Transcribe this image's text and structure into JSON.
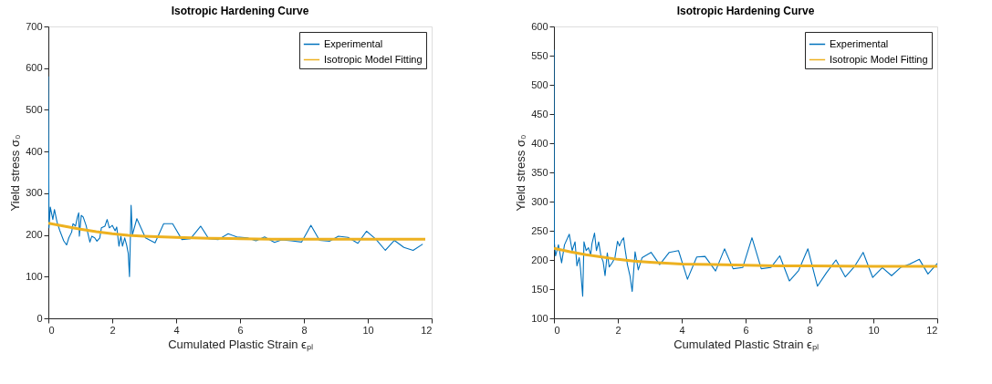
{
  "chart_data": [
    {
      "type": "line",
      "title": "Isotropic Hardening Curve",
      "xlabel": "Cumulated Plastic Strain ϵₚₗ",
      "ylabel": "Yield stress σ₀",
      "xlim": [
        0,
        12
      ],
      "xticks": [
        0,
        2,
        4,
        6,
        8,
        10,
        12
      ],
      "ylim": [
        0,
        700
      ],
      "yticks": [
        0,
        100,
        200,
        300,
        400,
        500,
        600,
        700
      ],
      "grid": false,
      "legend": "top right",
      "series": [
        {
          "name": "Experimental",
          "color": "#0072bd",
          "x": [
            0,
            0.02,
            0.06,
            0.14,
            0.19,
            0.27,
            0.36,
            0.48,
            0.57,
            0.64,
            0.73,
            0.77,
            0.85,
            0.91,
            0.95,
            0.97,
            1.03,
            1.09,
            1.18,
            1.3,
            1.36,
            1.45,
            1.52,
            1.61,
            1.66,
            1.77,
            1.84,
            1.91,
            2.0,
            2.09,
            2.14,
            2.21,
            2.27,
            2.32,
            2.39,
            2.45,
            2.5,
            2.54,
            2.59,
            2.63,
            2.77,
            3.04,
            3.34,
            3.61,
            3.89,
            4.18,
            4.45,
            4.77,
            5.02,
            5.32,
            5.63,
            5.9,
            6.23,
            6.5,
            6.77,
            7.08,
            7.3,
            7.6,
            7.93,
            8.22,
            8.49,
            8.8,
            9.08,
            9.38,
            9.69,
            9.96,
            10.25,
            10.55,
            10.83,
            11.13,
            11.42,
            11.72
          ],
          "values": [
            580,
            217,
            267,
            237,
            261,
            231,
            210,
            186,
            176,
            193,
            207,
            227,
            221,
            243,
            253,
            197,
            247,
            243,
            223,
            183,
            197,
            193,
            185,
            193,
            217,
            221,
            237,
            217,
            223,
            210,
            219,
            173,
            197,
            173,
            193,
            176,
            156,
            100,
            271,
            200,
            239,
            193,
            181,
            227,
            227,
            189,
            191,
            221,
            191,
            189,
            203,
            195,
            193,
            186,
            195,
            182,
            188,
            186,
            183,
            223,
            187,
            185,
            197,
            194,
            180,
            209,
            190,
            163,
            187,
            170,
            163,
            178
          ]
        },
        {
          "name": "Isotropic Model Fitting",
          "color": "#edb120",
          "x": [
            0,
            0.5,
            1,
            1.5,
            2,
            2.5,
            3,
            4,
            5,
            6,
            7,
            8,
            10,
            11.8
          ],
          "values": [
            228,
            221,
            214,
            208,
            203,
            199,
            197,
            194,
            192,
            191,
            190,
            190,
            190,
            190
          ]
        }
      ]
    },
    {
      "type": "line",
      "title": "Isotropic Hardening Curve",
      "xlabel": "Cumulated Plastic Strain ϵₚₗ",
      "ylabel": "Yield stress σ₀",
      "xlim": [
        0,
        12
      ],
      "xticks": [
        0,
        2,
        4,
        6,
        8,
        10,
        12
      ],
      "ylim": [
        100,
        600
      ],
      "yticks": [
        100,
        150,
        200,
        250,
        300,
        350,
        400,
        450,
        500,
        550,
        600
      ],
      "grid": false,
      "legend": "top right",
      "series": [
        {
          "name": "Experimental",
          "color": "#0072bd",
          "x": [
            0,
            0.01,
            0.05,
            0.14,
            0.24,
            0.33,
            0.48,
            0.57,
            0.66,
            0.72,
            0.79,
            0.83,
            0.9,
            0.94,
            1.01,
            1.08,
            1.15,
            1.19,
            1.27,
            1.33,
            1.4,
            1.47,
            1.54,
            1.6,
            1.67,
            1.73,
            1.82,
            1.91,
            1.99,
            2.05,
            2.12,
            2.18,
            2.22,
            2.3,
            2.38,
            2.45,
            2.54,
            2.64,
            2.76,
            3.04,
            3.31,
            3.61,
            3.9,
            4.18,
            4.47,
            4.73,
            5.06,
            5.34,
            5.61,
            5.91,
            6.2,
            6.49,
            6.79,
            7.07,
            7.37,
            7.66,
            7.95,
            8.25,
            8.53,
            8.83,
            9.12,
            9.4,
            9.68,
            9.98,
            10.28,
            10.57,
            10.85,
            11.14,
            11.44,
            11.71,
            12.0
          ],
          "values": [
            560,
            231,
            207,
            226,
            195,
            226,
            244,
            216,
            231,
            190,
            204,
            186,
            138,
            231,
            216,
            221,
            209,
            228,
            246,
            216,
            231,
            207,
            197,
            173,
            212,
            188,
            195,
            204,
            232,
            224,
            233,
            238,
            221,
            192,
            173,
            146,
            214,
            183,
            204,
            213,
            192,
            213,
            216,
            167,
            205,
            206,
            181,
            219,
            185,
            187,
            238,
            185,
            187,
            207,
            164,
            182,
            219,
            155,
            178,
            200,
            171,
            188,
            213,
            170,
            187,
            173,
            187,
            193,
            201,
            176,
            194
          ]
        },
        {
          "name": "Isotropic Model Fitting",
          "color": "#edb120",
          "x": [
            0,
            0.5,
            1,
            1.5,
            2,
            2.5,
            3,
            4,
            5,
            6,
            7,
            8,
            10,
            12
          ],
          "values": [
            220,
            214,
            209,
            205,
            201,
            198,
            196,
            193,
            192,
            191,
            190,
            190,
            189,
            189
          ]
        }
      ]
    }
  ]
}
